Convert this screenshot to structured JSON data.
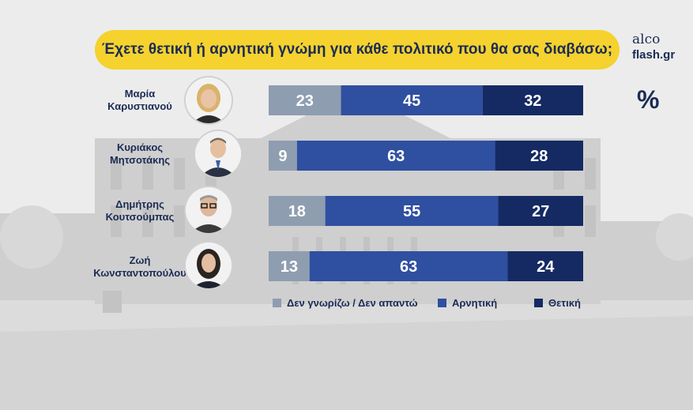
{
  "title": "Έχετε θετική ή αρνητική γνώμη για κάθε πολιτικό που θα σας διαβάσω;",
  "brand": {
    "line1": "alco",
    "line2": "flash.gr"
  },
  "unit_label": "%",
  "colors": {
    "dont_know": "#8f9db0",
    "negative": "#2f4fa0",
    "positive": "#152a63",
    "title_bg": "#f5d22e"
  },
  "people": [
    {
      "first": "Μαρία",
      "last": "Καρυστιανού",
      "icon": "portrait-woman-blonde"
    },
    {
      "first": "Κυριάκος",
      "last": "Μητσοτάκης",
      "icon": "portrait-man-suit"
    },
    {
      "first": "Δημήτρης",
      "last": "Κουτσούμπας",
      "icon": "portrait-man-glasses"
    },
    {
      "first": "Ζωή",
      "last": "Κωνσταντοπούλου",
      "icon": "portrait-woman-dark"
    }
  ],
  "chart_data": {
    "type": "bar",
    "stacked": true,
    "orientation": "horizontal",
    "categories": [
      "Μαρία Καρυστιανού",
      "Κυριάκος Μητσοτάκης",
      "Δημήτρης Κουτσούμπας",
      "Ζωή Κωνσταντοπούλου"
    ],
    "series": [
      {
        "name": "Δεν γνωρίζω / Δεν απαντώ",
        "values": [
          23,
          9,
          18,
          13
        ]
      },
      {
        "name": "Αρνητική",
        "values": [
          45,
          63,
          55,
          63
        ]
      },
      {
        "name": "Θετική",
        "values": [
          32,
          28,
          27,
          24
        ]
      }
    ],
    "xlim": [
      0,
      100
    ],
    "legend_position": "bottom",
    "grid": false
  }
}
